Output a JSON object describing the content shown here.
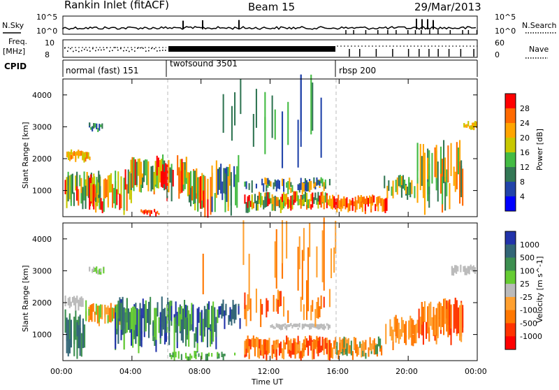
{
  "header": {
    "title": "Rankin Inlet (fitACF)",
    "beam": "Beam 15",
    "date": "29/Mar/2013"
  },
  "noise_panel": {
    "left_label": "N.Sky",
    "left_ticks": [
      "10^5",
      "10^0"
    ],
    "right_ticks": [
      "10^5",
      "10^0"
    ],
    "right_label": "N.Search"
  },
  "freq_panel": {
    "left_label_1": "Freq.",
    "left_label_2": "[MHz]",
    "left_ticks": [
      "10",
      "8"
    ],
    "right_ticks": [
      "60",
      "0"
    ],
    "right_label": "Nave"
  },
  "cpid": {
    "label": "CPID",
    "modes": [
      {
        "name": "normal (fast) 151",
        "start_hour": 0
      },
      {
        "name": "twofsound 3501",
        "start_hour": 6
      },
      {
        "name": "rbsp 200",
        "start_hour": 15.5
      }
    ]
  },
  "chart_data": [
    {
      "type": "heatmap",
      "title": "",
      "xlabel": "Time UT",
      "ylabel": "Slant Range [km]",
      "xlim_hours": [
        0,
        24
      ],
      "ylim": [
        180,
        4500
      ],
      "x_tick_labels": [
        "00:00",
        "04:00",
        "08:00",
        "12:00",
        "16:00",
        "20:00",
        "00:00"
      ],
      "y_tick_labels": [
        "1000",
        "2000",
        "3000",
        "4000"
      ],
      "mode_boundaries_hours": [
        6,
        15.5
      ],
      "colorbar": {
        "label": "Power [dB]",
        "tick_labels": [
          "28",
          "24",
          "20",
          "16",
          "12",
          "8",
          "4"
        ],
        "colors": [
          "#ff0000",
          "#ff6a00",
          "#ffa500",
          "#c8c800",
          "#44bb44",
          "#337755",
          "#2244aa",
          "#0000ff"
        ]
      }
    },
    {
      "type": "heatmap",
      "title": "",
      "xlabel": "Time UT",
      "ylabel": "Slant Range [km]",
      "xlim_hours": [
        0,
        24
      ],
      "ylim": [
        180,
        4500
      ],
      "x_tick_labels": [
        "00:00",
        "04:00",
        "08:00",
        "12:00",
        "16:00",
        "20:00",
        "00:00"
      ],
      "y_tick_labels": [
        "1000",
        "2000",
        "3000",
        "4000"
      ],
      "mode_boundaries_hours": [
        6,
        15.5
      ],
      "colorbar": {
        "label": "Velocity [m s^-1]",
        "tick_labels": [
          "1000",
          "500",
          "100",
          "25",
          "-25",
          "-100",
          "-500",
          "-1000"
        ],
        "colors": [
          "#2233aa",
          "#336677",
          "#3d8f50",
          "#66cc33",
          "#bbbbbb",
          "#ffa030",
          "#ff7700",
          "#ff3300",
          "#ff0000"
        ]
      }
    }
  ],
  "xaxis_title": "Time UT"
}
